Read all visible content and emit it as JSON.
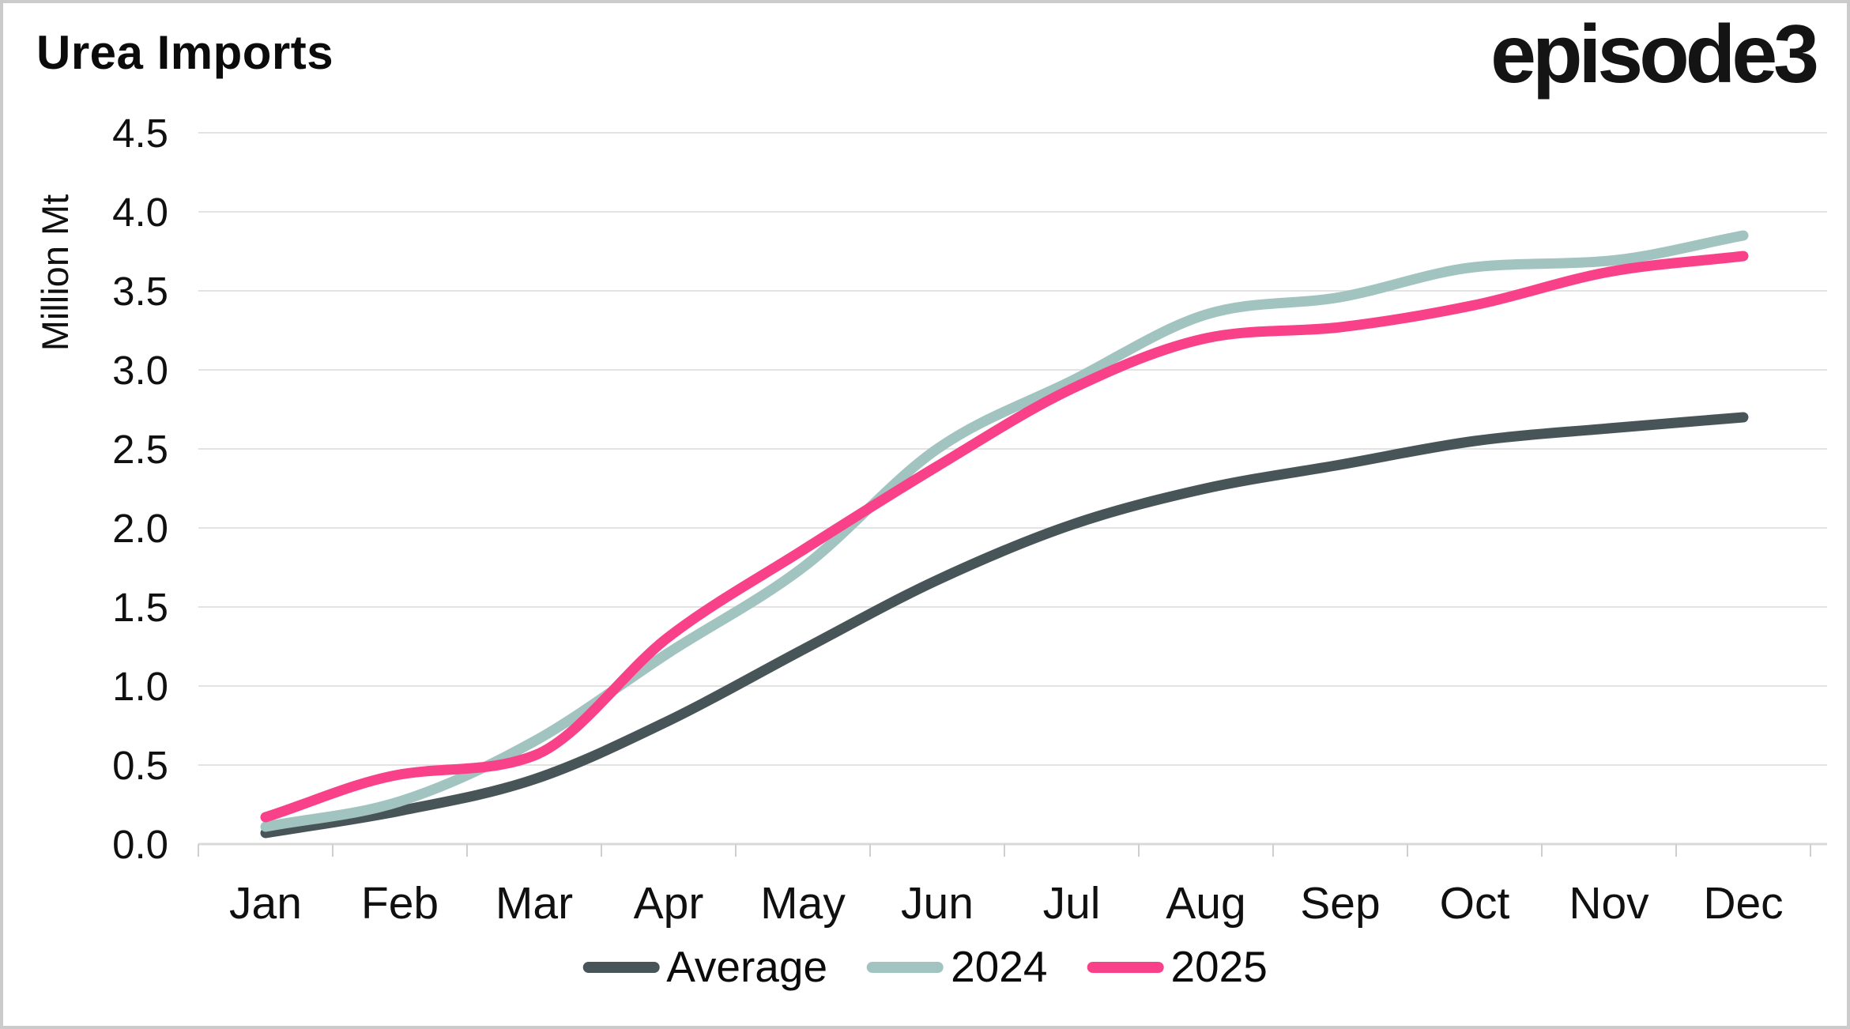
{
  "header": {
    "title": "Urea Imports",
    "logo_text": "episode3"
  },
  "y_axis": {
    "label": "Million Mt",
    "tick_labels": [
      "0.0",
      "0.5",
      "1.0",
      "1.5",
      "2.0",
      "2.5",
      "3.0",
      "3.5",
      "4.0",
      "4.5"
    ]
  },
  "x_axis": {
    "tick_labels": [
      "Jan",
      "Feb",
      "Mar",
      "Apr",
      "May",
      "Jun",
      "Jul",
      "Aug",
      "Sep",
      "Oct",
      "Nov",
      "Dec"
    ]
  },
  "legend": {
    "position": "bottom",
    "items": [
      "Average",
      "2024",
      "2025"
    ]
  },
  "colors": {
    "average_line": "#475559",
    "line_2024": "#A2C4C0",
    "line_2025": "#F9418A",
    "gridline": "#E3E3E3",
    "axis_line": "#D9D9D9",
    "tick_mark": "#CFCFCF",
    "text": "#101010",
    "border": "#CBCBCB",
    "background": "#FFFFFF"
  },
  "chart_data": {
    "type": "line",
    "title": "Urea Imports",
    "xlabel": "",
    "ylabel": "Million Mt",
    "ylim": [
      0,
      4.5
    ],
    "ytick_step": 0.5,
    "grid": "horizontal",
    "legend_position": "bottom",
    "line_style": "smooth-monotone",
    "categories": [
      "Jan",
      "Feb",
      "Mar",
      "Apr",
      "May",
      "Jun",
      "Jul",
      "Aug",
      "Sep",
      "Oct",
      "Nov",
      "Dec"
    ],
    "series": [
      {
        "name": "Average",
        "color": "#475559",
        "values": [
          0.07,
          0.21,
          0.41,
          0.78,
          1.23,
          1.67,
          2.02,
          2.25,
          2.4,
          2.55,
          2.63,
          2.7
        ]
      },
      {
        "name": "2024",
        "color": "#A2C4C0",
        "values": [
          0.11,
          0.27,
          0.65,
          1.21,
          1.75,
          2.5,
          2.93,
          3.35,
          3.46,
          3.65,
          3.69,
          3.85
        ]
      },
      {
        "name": "2025",
        "color": "#F9418A",
        "values": [
          0.17,
          0.44,
          0.56,
          1.31,
          1.86,
          2.39,
          2.88,
          3.2,
          3.27,
          3.41,
          3.62,
          3.72
        ]
      }
    ]
  }
}
